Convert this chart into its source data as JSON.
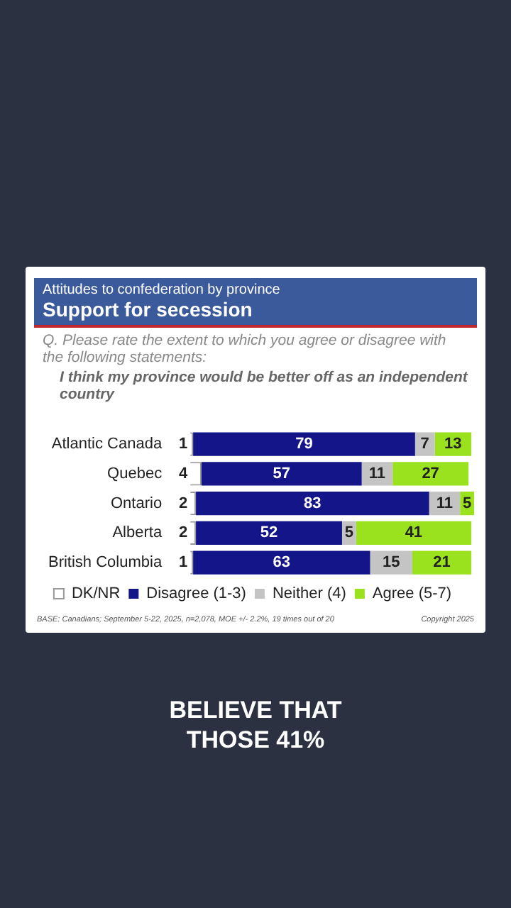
{
  "chart_data": {
    "type": "bar",
    "orientation": "horizontal",
    "stacked": true,
    "title": "Support for secession",
    "subtitle": "Attitudes to confederation by province",
    "annotations": [
      "Q. Please rate the extent to which you agree or disagree with the following statements:",
      "I think my province would be better off as an independent country",
      "BASE: Canadians; September 5-22, 2025, n=2,078, MOE +/- 2.2%, 19 times out of 20",
      "Copyright 2025",
      "BELIEVE THAT THOSE 41%"
    ],
    "categories": [
      "Atlantic Canada",
      "Quebec",
      "Ontario",
      "Alberta",
      "British Columbia"
    ],
    "series": [
      {
        "name": "DK/NR",
        "color": "#ffffff",
        "values": [
          1,
          4,
          2,
          2,
          1
        ]
      },
      {
        "name": "Disagree (1-3)",
        "color": "#15158a",
        "values": [
          79,
          57,
          83,
          52,
          63
        ]
      },
      {
        "name": "Neither (4)",
        "color": "#c4c4c4",
        "values": [
          7,
          11,
          11,
          5,
          15
        ]
      },
      {
        "name": "Agree (5-7)",
        "color": "#9be21e",
        "values": [
          13,
          27,
          5,
          41,
          21
        ]
      }
    ],
    "tick_labels": "y",
    "legend": "bottom",
    "data_labels": true
  }
}
